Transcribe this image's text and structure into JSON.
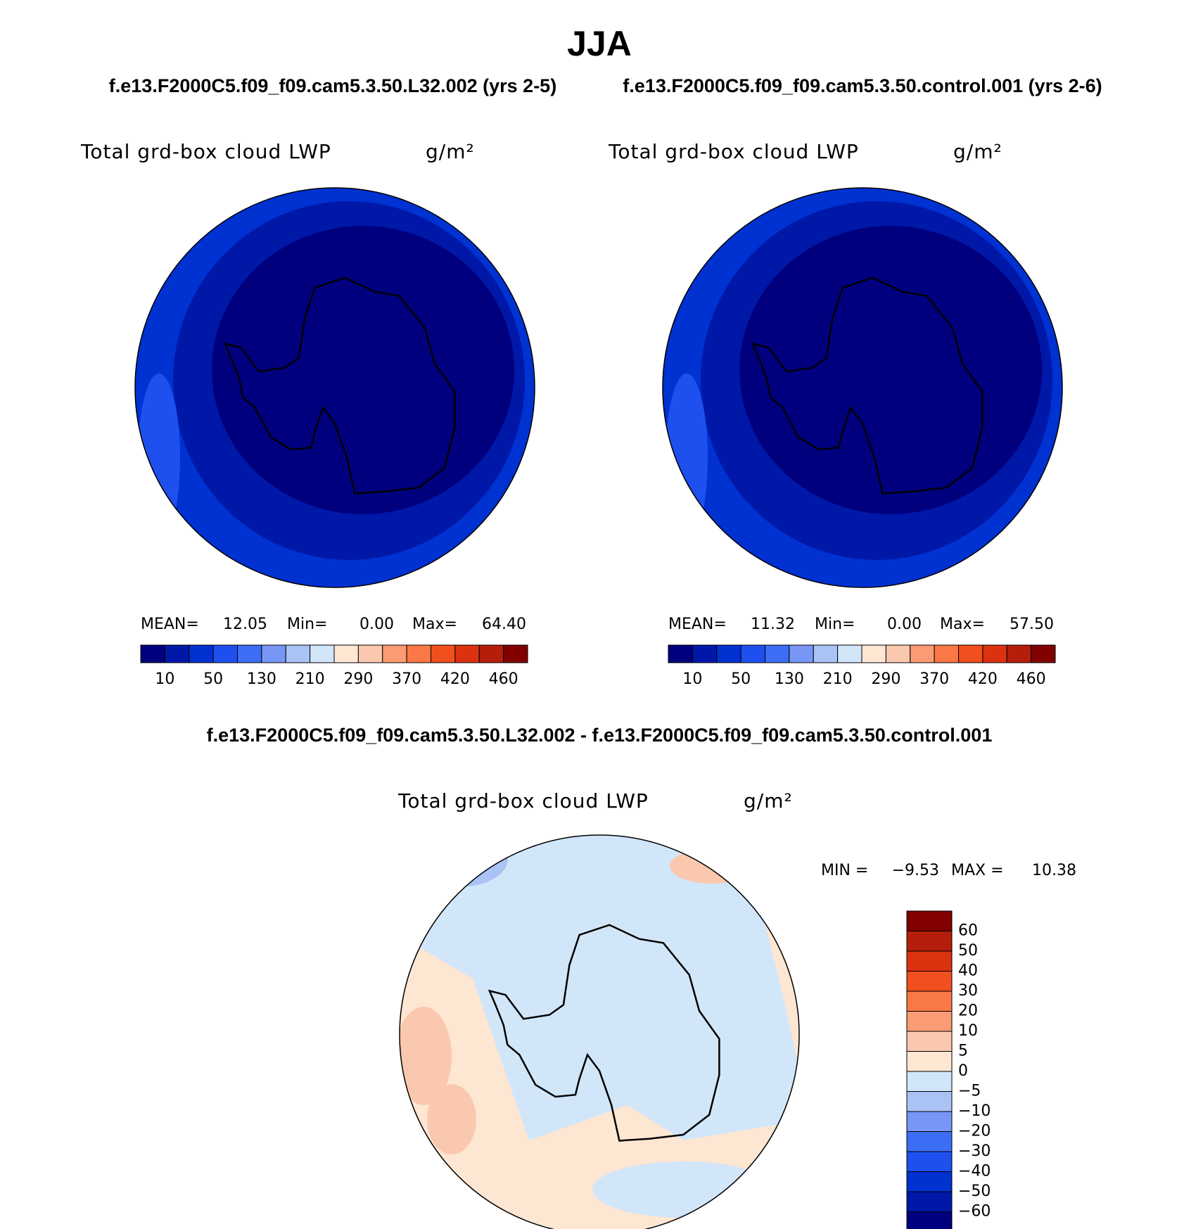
{
  "header": {
    "title": "JJA"
  },
  "panels": [
    {
      "subtitle": "f.e13.F2000C5.f09_f09.cam5.3.50.L32.002 (yrs 2-5)",
      "variable": "Total grd-box cloud LWP",
      "units": "g/m²",
      "stats": [
        {
          "label": "MEAN=",
          "value": {
            "value": 12.05,
            "label": "12.05"
          }
        },
        {
          "label": "Min=",
          "value": {
            "value": 0,
            "label": "0.00"
          }
        },
        {
          "label": "Max=",
          "value": {
            "value": 64.4,
            "label": "64.40"
          }
        }
      ]
    },
    {
      "subtitle": "f.e13.F2000C5.f09_f09.cam5.3.50.control.001 (yrs 2-6)",
      "variable": "Total grd-box cloud LWP",
      "units": "g/m²",
      "stats": [
        {
          "label": "MEAN=",
          "value": {
            "value": 11.32,
            "label": "11.32"
          }
        },
        {
          "label": "Min=",
          "value": {
            "value": 0,
            "label": "0.00"
          }
        },
        {
          "label": "Max=",
          "value": {
            "value": 57.5,
            "label": "57.50"
          }
        }
      ]
    }
  ],
  "colorbar": {
    "colors": [
      "#00007f",
      "#0018a8",
      "#0032d2",
      "#1e50f0",
      "#3c6ef5",
      "#7896f5",
      "#aac3f5",
      "#d2e6fa",
      "#fde6d2",
      "#fac8af",
      "#fa9b73",
      "#fa7846",
      "#f0501e",
      "#dc320f",
      "#b41e0a",
      "#820000"
    ],
    "labels": [
      10,
      50,
      130,
      210,
      290,
      370,
      420,
      460
    ]
  },
  "difference": {
    "title": "f.e13.F2000C5.f09_f09.cam5.3.50.L32.002 - f.e13.F2000C5.f09_f09.cam5.3.50.control.001",
    "variable": "Total grd-box cloud LWP",
    "units": "g/m²",
    "stats": [
      {
        "label": "MIN =",
        "value": {
          "value": -9.53,
          "label": "−9.53"
        }
      },
      {
        "label": "MAX =",
        "value": {
          "value": 10.38,
          "label": "10.38"
        }
      }
    ],
    "colorbar": {
      "colors": [
        "#820000",
        "#b41e0a",
        "#dc320f",
        "#f0501e",
        "#fa7846",
        "#fa9b73",
        "#fac8af",
        "#fde6d2",
        "#d2e6fa",
        "#aac3f5",
        "#7896f5",
        "#3c6ef5",
        "#1e50f0",
        "#0032d2",
        "#0018a8",
        "#00007f"
      ],
      "labels": [
        60,
        50,
        40,
        30,
        20,
        10,
        5,
        0,
        {
          "value": -5,
          "label": "−5"
        },
        {
          "value": -10,
          "label": "−10"
        },
        {
          "value": -20,
          "label": "−20"
        },
        {
          "value": -30,
          "label": "−30"
        },
        {
          "value": -40,
          "label": "−40"
        },
        {
          "value": -50,
          "label": "−50"
        },
        {
          "value": -60,
          "label": "−60"
        }
      ]
    }
  }
}
